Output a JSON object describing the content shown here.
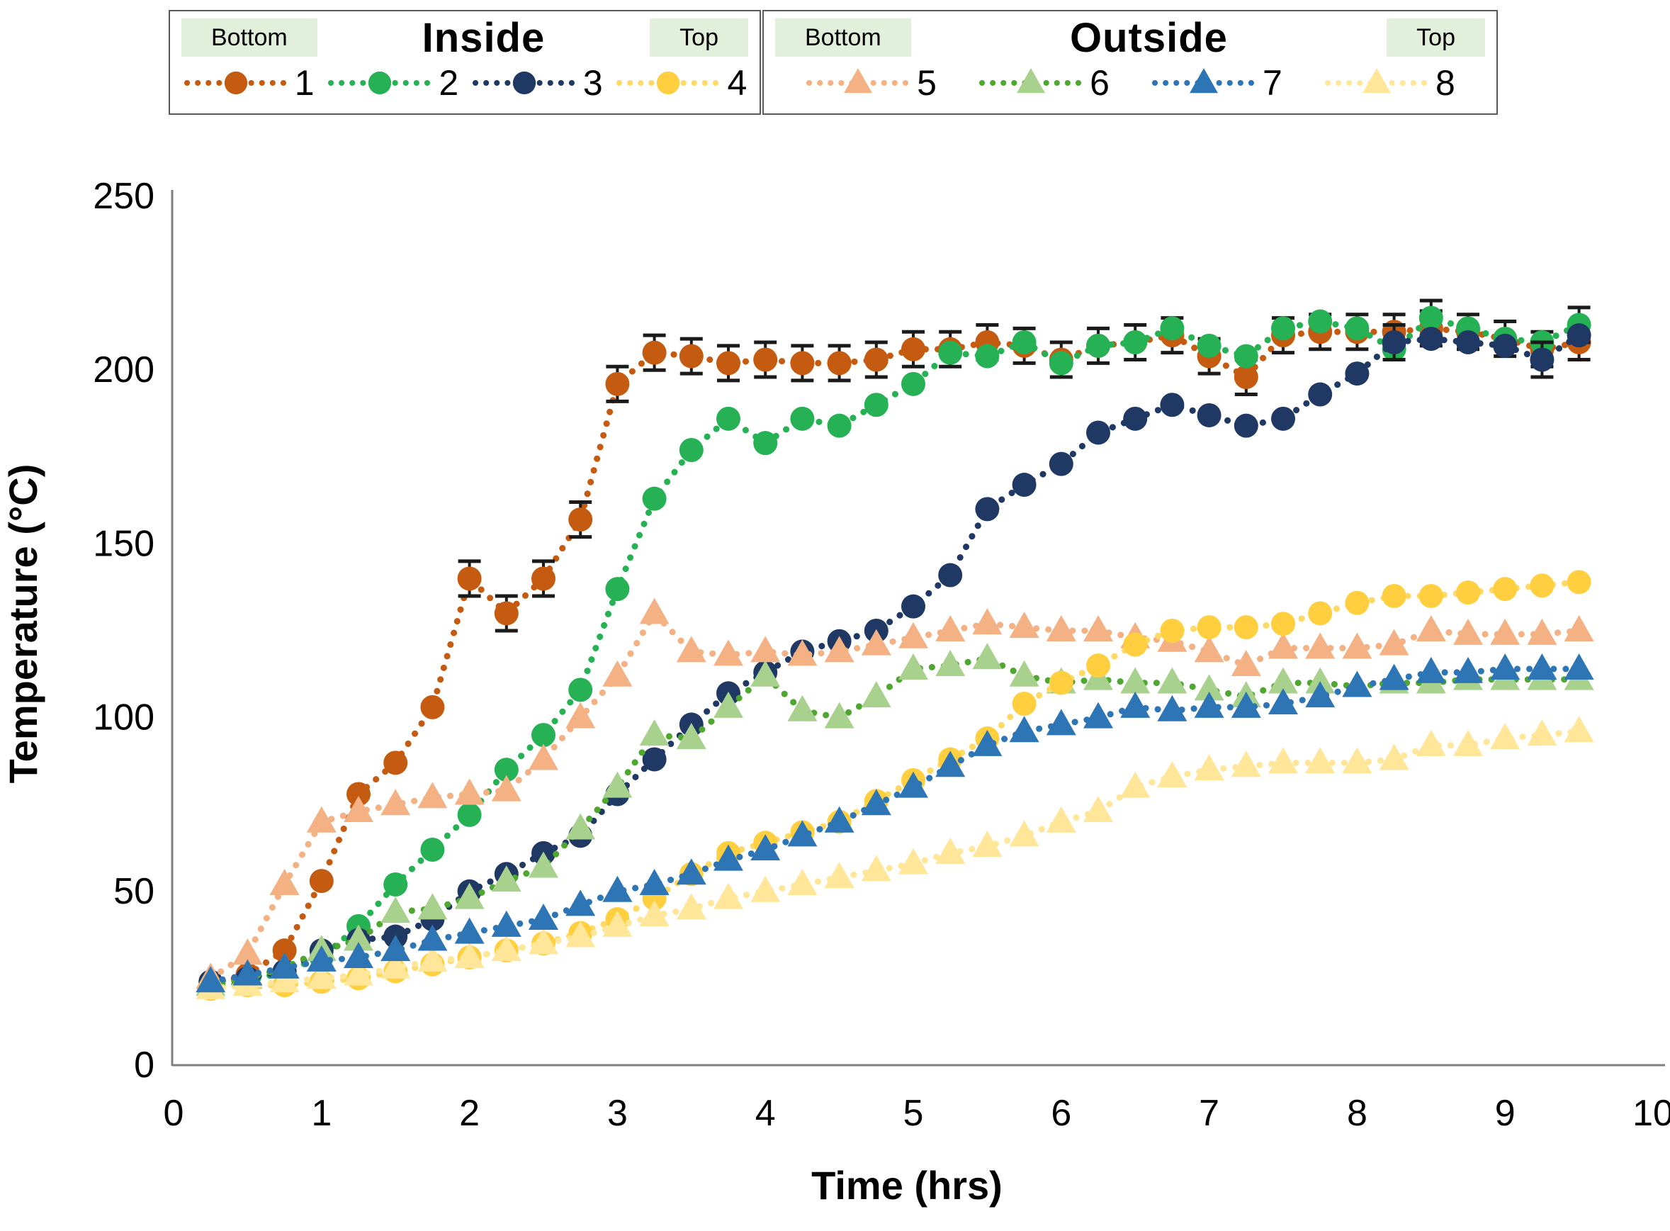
{
  "chart_data": {
    "type": "line",
    "title": "",
    "xlabel": "Time (hrs)",
    "ylabel": "Temperature (°C)",
    "xlim": [
      0,
      10
    ],
    "ylim": [
      0,
      250
    ],
    "x_ticks": [
      0,
      1,
      2,
      3,
      4,
      5,
      6,
      7,
      8,
      9,
      10
    ],
    "y_ticks": [
      0,
      50,
      100,
      150,
      200,
      250
    ],
    "grid": false,
    "axis_color": "#7F7F7F",
    "error_bar_color": "#1a1a1a",
    "x": [
      0.25,
      0.5,
      0.75,
      1.0,
      1.25,
      1.5,
      1.75,
      2.0,
      2.25,
      2.5,
      2.75,
      3.0,
      3.25,
      3.5,
      3.75,
      4.0,
      4.25,
      4.5,
      4.75,
      5.0,
      5.25,
      5.5,
      5.75,
      6.0,
      6.25,
      6.5,
      6.75,
      7.0,
      7.25,
      7.5,
      7.75,
      8.0,
      8.25,
      8.5,
      8.75,
      9.0,
      9.25,
      9.5
    ],
    "series": [
      {
        "id": "1",
        "label": "1",
        "group": "Inside",
        "position": "Bottom",
        "marker": "circle",
        "color": "#C55A11",
        "line_color": "#C55A11",
        "values": [
          23,
          26,
          33,
          53,
          78,
          87,
          103,
          140,
          130,
          140,
          157,
          196,
          205,
          204,
          202,
          203,
          202,
          202,
          203,
          206,
          206,
          208,
          207,
          203,
          207,
          208,
          210,
          204,
          198,
          210,
          211,
          211,
          211,
          212,
          211,
          209,
          206,
          208
        ],
        "error": {
          "type": "range",
          "t_start": 2.0,
          "e": 5
        }
      },
      {
        "id": "2",
        "label": "2",
        "group": "Inside",
        "position": "",
        "marker": "circle",
        "color": "#27B155",
        "line_color": "#27B155",
        "values": [
          22,
          24,
          27,
          31,
          40,
          52,
          62,
          72,
          85,
          95,
          108,
          137,
          163,
          177,
          186,
          179,
          186,
          184,
          190,
          196,
          205,
          204,
          208,
          202,
          207,
          208,
          212,
          207,
          204,
          212,
          214,
          212,
          206,
          215,
          212,
          209,
          208,
          213
        ],
        "error": {
          "type": "points",
          "points": [
            [
              8.5,
              5
            ],
            [
              9.5,
              5
            ]
          ]
        }
      },
      {
        "id": "3",
        "label": "3",
        "group": "Inside",
        "position": "",
        "marker": "circle",
        "color": "#1F3864",
        "line_color": "#1F3864",
        "values": [
          24,
          25,
          27,
          33,
          36,
          37,
          42,
          50,
          55,
          61,
          66,
          78,
          88,
          98,
          107,
          113,
          119,
          122,
          125,
          132,
          141,
          160,
          167,
          173,
          182,
          186,
          190,
          187,
          184,
          186,
          193,
          199,
          208,
          209,
          208,
          207,
          203,
          210
        ],
        "error": {
          "type": "points",
          "points": [
            [
              8.25,
              5
            ],
            [
              9.25,
              5
            ]
          ]
        }
      },
      {
        "id": "4",
        "label": "4",
        "group": "Inside",
        "position": "Top",
        "marker": "circle",
        "color": "#FFCF3F",
        "line_color": "#FFD966",
        "values": [
          22,
          23,
          23,
          24,
          25,
          27,
          29,
          31,
          33,
          35,
          38,
          42,
          48,
          55,
          61,
          64,
          67,
          70,
          76,
          82,
          88,
          94,
          104,
          110,
          115,
          121,
          125,
          126,
          126,
          127,
          130,
          133,
          135,
          135,
          136,
          137,
          138,
          139
        ],
        "error": null
      },
      {
        "id": "5",
        "label": "5",
        "group": "Outside",
        "position": "Bottom",
        "marker": "triangle",
        "color": "#F4B183",
        "line_color": "#F4B183",
        "values": [
          25,
          32,
          52,
          70,
          73,
          75,
          77,
          78,
          79,
          88,
          100,
          112,
          130,
          119,
          118,
          119,
          118,
          119,
          121,
          123,
          125,
          127,
          126,
          125,
          125,
          123,
          122,
          119,
          115,
          120,
          120,
          120,
          121,
          125,
          124,
          124,
          124,
          125
        ],
        "error": null
      },
      {
        "id": "6",
        "label": "6",
        "group": "Outside",
        "position": "",
        "marker": "triangle",
        "color": "#A9D18E",
        "line_color": "#4EA72E",
        "values": [
          23,
          25,
          28,
          33,
          36,
          44,
          45,
          48,
          53,
          57,
          68,
          80,
          95,
          94,
          103,
          112,
          102,
          100,
          106,
          114,
          115,
          117,
          112,
          110,
          111,
          110,
          110,
          108,
          106,
          110,
          110,
          109,
          110,
          110,
          111,
          111,
          111,
          111
        ],
        "error": null
      },
      {
        "id": "7",
        "label": "7",
        "group": "Outside",
        "position": "",
        "marker": "triangle",
        "color": "#2E75B6",
        "line_color": "#2E75B6",
        "values": [
          24,
          26,
          28,
          30,
          31,
          33,
          36,
          38,
          40,
          42,
          46,
          50,
          52,
          55,
          59,
          62,
          66,
          70,
          75,
          80,
          86,
          92,
          96,
          98,
          100,
          103,
          102,
          103,
          103,
          104,
          106,
          109,
          111,
          113,
          113,
          114,
          114,
          114
        ],
        "error": null
      },
      {
        "id": "8",
        "label": "8",
        "group": "Outside",
        "position": "Top",
        "marker": "triangle",
        "color": "#FFE699",
        "line_color": "#FFE699",
        "values": [
          22,
          23,
          24,
          25,
          26,
          28,
          30,
          31,
          33,
          35,
          37,
          40,
          43,
          45,
          48,
          50,
          52,
          54,
          56,
          58,
          61,
          63,
          66,
          70,
          73,
          80,
          83,
          85,
          86,
          87,
          87,
          87,
          88,
          92,
          92,
          94,
          95,
          96
        ],
        "error": null
      }
    ],
    "legend": {
      "highlight_color": "#E2EFDA",
      "groups": [
        {
          "title": "Inside",
          "left_label": "Bottom",
          "right_label": "Top",
          "series": [
            "1",
            "2",
            "3",
            "4"
          ]
        },
        {
          "title": "Outside",
          "left_label": "Bottom",
          "right_label": "Top",
          "series": [
            "5",
            "6",
            "7",
            "8"
          ]
        }
      ],
      "legend_position": "top"
    }
  }
}
